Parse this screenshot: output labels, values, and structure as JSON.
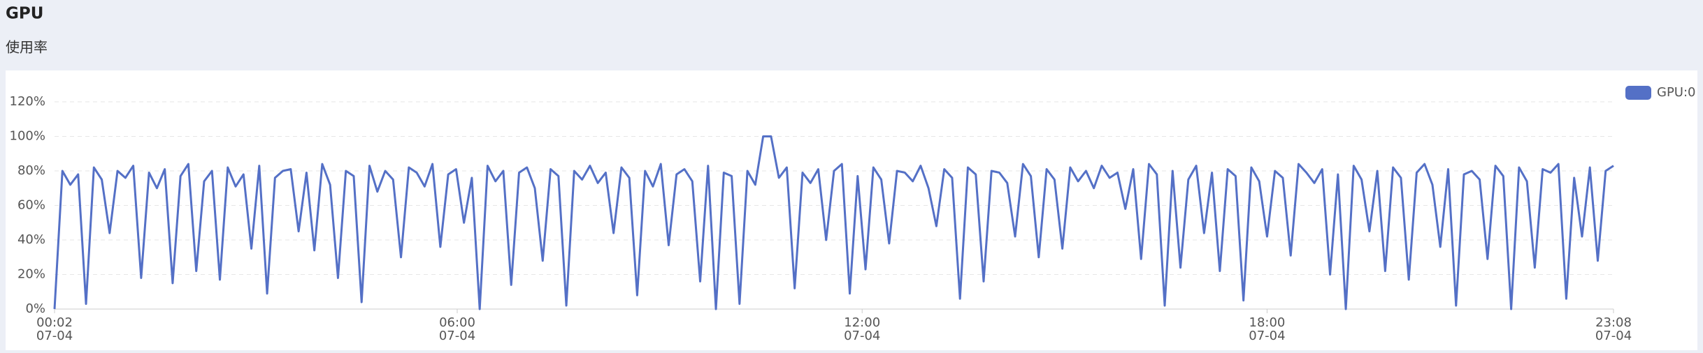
{
  "header": {
    "title": "GPU",
    "subtitle": "使用率"
  },
  "chart_data": {
    "type": "line",
    "x": [
      2,
      9,
      16,
      23,
      30,
      37,
      44,
      51,
      58,
      65,
      72,
      79,
      86,
      93,
      100,
      107,
      114,
      121,
      128,
      135,
      142,
      149,
      156,
      163,
      170,
      177,
      184,
      191,
      198,
      205,
      212,
      219,
      226,
      233,
      240,
      247,
      254,
      261,
      268,
      275,
      282,
      289,
      296,
      303,
      310,
      317,
      324,
      331,
      338,
      345,
      352,
      359,
      366,
      373,
      380,
      387,
      394,
      401,
      408,
      415,
      422,
      429,
      436,
      443,
      450,
      457,
      464,
      471,
      478,
      485,
      492,
      499,
      506,
      513,
      520,
      527,
      534,
      541,
      548,
      555,
      562,
      569,
      576,
      583,
      590,
      597,
      604,
      611,
      618,
      625,
      632,
      639,
      646,
      653,
      660,
      667,
      674,
      681,
      688,
      695,
      702,
      709,
      716,
      723,
      730,
      737,
      744,
      751,
      758,
      765,
      772,
      779,
      786,
      793,
      800,
      807,
      814,
      821,
      828,
      835,
      842,
      849,
      856,
      863,
      870,
      877,
      884,
      891,
      898,
      905,
      912,
      919,
      926,
      933,
      940,
      947,
      954,
      961,
      968,
      975,
      982,
      989,
      996,
      1003,
      1010,
      1017,
      1024,
      1031,
      1038,
      1045,
      1052,
      1059,
      1066,
      1073,
      1080,
      1087,
      1094,
      1101,
      1108,
      1115,
      1122,
      1129,
      1136,
      1143,
      1150,
      1157,
      1164,
      1171,
      1178,
      1185,
      1192,
      1199,
      1206,
      1213,
      1220,
      1227,
      1234,
      1241,
      1248,
      1255,
      1262,
      1269,
      1276,
      1283,
      1290,
      1297,
      1304,
      1311,
      1318,
      1325,
      1332,
      1339,
      1346,
      1353,
      1360,
      1367,
      1374,
      1381,
      1388
    ],
    "series": [
      {
        "name": "GPU:0",
        "color": "#5470c6",
        "values": [
          0,
          80,
          72,
          78,
          3,
          82,
          75,
          44,
          80,
          76,
          83,
          18,
          79,
          70,
          81,
          15,
          77,
          84,
          22,
          74,
          80,
          17,
          82,
          71,
          78,
          35,
          83,
          9,
          76,
          80,
          81,
          45,
          79,
          34,
          84,
          72,
          18,
          80,
          77,
          4,
          83,
          68,
          80,
          75,
          30,
          82,
          79,
          71,
          84,
          36,
          78,
          81,
          50,
          76,
          0,
          83,
          74,
          80,
          14,
          79,
          82,
          70,
          28,
          81,
          77,
          2,
          80,
          75,
          83,
          73,
          79,
          44,
          82,
          76,
          8,
          80,
          71,
          84,
          37,
          78,
          81,
          74,
          16,
          83,
          0,
          79,
          77,
          3,
          80,
          72,
          100,
          100,
          76,
          82,
          12,
          79,
          73,
          81,
          40,
          80,
          84,
          9,
          77,
          23,
          82,
          75,
          38,
          80,
          79,
          74,
          83,
          70,
          48,
          81,
          76,
          6,
          82,
          78,
          16,
          80,
          79,
          73,
          42,
          84,
          77,
          30,
          81,
          75,
          35,
          82,
          74,
          80,
          70,
          83,
          76,
          79,
          58,
          81,
          29,
          84,
          78,
          2,
          80,
          24,
          75,
          83,
          44,
          79,
          22,
          81,
          77,
          5,
          82,
          74,
          42,
          80,
          76,
          31,
          84,
          79,
          73,
          81,
          20,
          78,
          0,
          83,
          75,
          45,
          80,
          22,
          82,
          76,
          17,
          79,
          84,
          72,
          36,
          81,
          2,
          78,
          80,
          75,
          29,
          83,
          77,
          0,
          82,
          74,
          24,
          81,
          79,
          84,
          6,
          76,
          42,
          82,
          28,
          80,
          83
        ]
      }
    ],
    "xlim": [
      2,
      1388
    ],
    "xticks": [
      {
        "value": 2,
        "label": "00:02\n07-04"
      },
      {
        "value": 360,
        "label": "06:00\n07-04"
      },
      {
        "value": 720,
        "label": "12:00\n07-04"
      },
      {
        "value": 1080,
        "label": "18:00\n07-04"
      },
      {
        "value": 1388,
        "label": "23:08\n07-04"
      }
    ],
    "ylim": [
      0,
      120
    ],
    "yticks": [
      {
        "value": 0,
        "label": "0%"
      },
      {
        "value": 20,
        "label": "20%"
      },
      {
        "value": 40,
        "label": "40%"
      },
      {
        "value": 60,
        "label": "60%"
      },
      {
        "value": 80,
        "label": "80%"
      },
      {
        "value": 100,
        "label": "100%"
      },
      {
        "value": 120,
        "label": "120%"
      }
    ],
    "grid": true,
    "legend": "top-right"
  }
}
